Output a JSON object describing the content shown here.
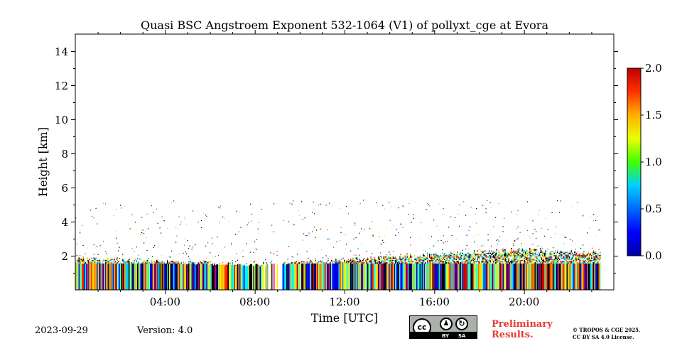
{
  "chart_data": {
    "type": "heatmap",
    "title": "Quasi BSC Angstroem Exponent 532-1064 (V1) of pollyxt_cge at Evora",
    "xlabel": "Time [UTC]",
    "ylabel": "Height [km]",
    "xlim_hours": [
      0,
      24
    ],
    "ylim_km": [
      0,
      15
    ],
    "x_ticks": [
      {
        "hour": 4,
        "label": "04:00"
      },
      {
        "hour": 8,
        "label": "08:00"
      },
      {
        "hour": 12,
        "label": "12:00"
      },
      {
        "hour": 16,
        "label": "16:00"
      },
      {
        "hour": 20,
        "label": "20:00"
      }
    ],
    "y_ticks": [
      {
        "value": 2,
        "label": "2"
      },
      {
        "value": 4,
        "label": "4"
      },
      {
        "value": 6,
        "label": "6"
      },
      {
        "value": 8,
        "label": "8"
      },
      {
        "value": 10,
        "label": "10"
      },
      {
        "value": 12,
        "label": "12"
      },
      {
        "value": 14,
        "label": "14"
      }
    ],
    "colorbar": {
      "min": 0.0,
      "max": 2.0,
      "ticks": [
        {
          "value": 0.0,
          "label": "0.0"
        },
        {
          "value": 0.5,
          "label": "0.5"
        },
        {
          "value": 1.0,
          "label": "1.0"
        },
        {
          "value": 1.5,
          "label": "1.5"
        },
        {
          "value": 2.0,
          "label": "2.0"
        }
      ],
      "colormap": "jet"
    },
    "data_end_hour": 23.4,
    "boundary_layer": {
      "dense_top_km": [
        {
          "hour": 0,
          "km": 1.9
        },
        {
          "hour": 4,
          "km": 1.7
        },
        {
          "hour": 8,
          "km": 1.5
        },
        {
          "hour": 12,
          "km": 1.8
        },
        {
          "hour": 16,
          "km": 2.1
        },
        {
          "hour": 18,
          "km": 2.3
        },
        {
          "hour": 20,
          "km": 2.4
        },
        {
          "hour": 23.4,
          "km": 2.2
        }
      ],
      "sparse_top_km": 5.3,
      "gap_hours": [
        8.4,
        9.2
      ]
    }
  },
  "footer": {
    "date": "2023-09-29",
    "version": "Version: 4.0",
    "preliminary_line1": "Preliminary",
    "preliminary_line2": "Results.",
    "copyright_line1": "© TROPOS & CGE 2025.",
    "copyright_line2": "CC BY SA 4.0 License.",
    "license_badge": {
      "cc": "cc",
      "by": "BY",
      "sa": "SA"
    }
  }
}
